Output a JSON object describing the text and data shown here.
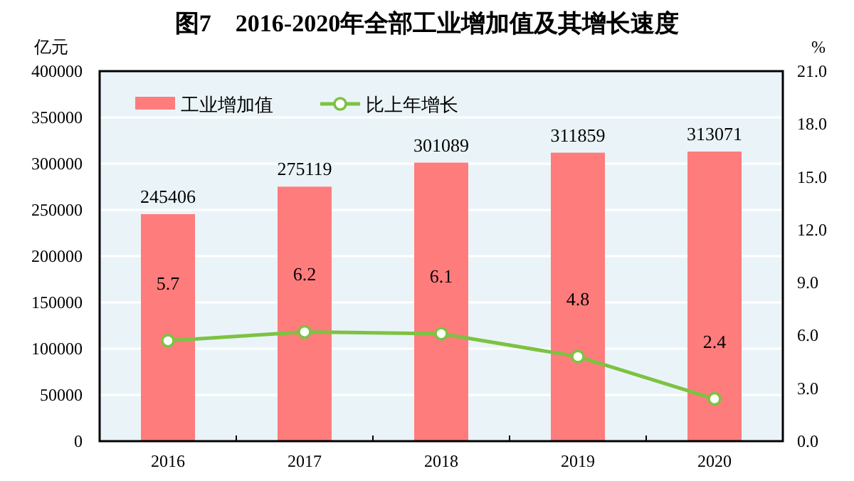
{
  "chart_data": {
    "type": "bar",
    "title": "图7　2016-2020年全部工业增加值及其增长速度",
    "ylabel": "亿元",
    "y2label": "%",
    "categories": [
      "2016",
      "2017",
      "2018",
      "2019",
      "2020"
    ],
    "series": [
      {
        "name": "工业增加值",
        "color": "#ff7c7c",
        "values": [
          245406,
          275119,
          301089,
          311859,
          313071
        ]
      },
      {
        "name": "比上年增长",
        "type": "line",
        "axis": "y2",
        "color": "#7dc242",
        "values": [
          5.7,
          6.2,
          6.1,
          4.8,
          2.4
        ]
      }
    ],
    "ylim": [
      0,
      400000
    ],
    "yticks": [
      0,
      50000,
      100000,
      150000,
      200000,
      250000,
      300000,
      350000,
      400000
    ],
    "y2lim": [
      0,
      21
    ],
    "y2ticks": [
      {
        "value": 0,
        "label": "0.0"
      },
      {
        "value": 3,
        "label": "3.0"
      },
      {
        "value": 6,
        "label": "6.0"
      },
      {
        "value": 9,
        "label": "9.0"
      },
      {
        "value": 12,
        "label": "12.0"
      },
      {
        "value": 15,
        "label": "15.0"
      },
      {
        "value": 18,
        "label": "18.0"
      },
      {
        "value": 21,
        "label": "21.0"
      }
    ],
    "grid": "y",
    "legend": "top left",
    "marker": "circle",
    "line_style": "solid",
    "data_labels": true
  }
}
